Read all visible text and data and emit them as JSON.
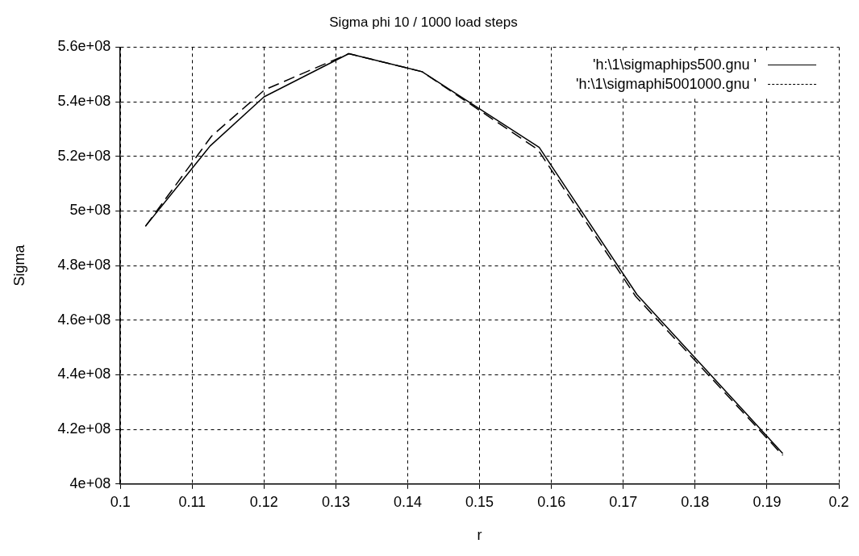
{
  "chart_data": {
    "type": "line",
    "title": "Sigma phi 10 / 1000 load steps",
    "xlabel": "r",
    "ylabel": "Sigma",
    "xlim": [
      0.1,
      0.2
    ],
    "xticks": [
      0.1,
      0.11,
      0.12,
      0.13,
      0.14,
      0.15,
      0.16,
      0.17,
      0.18,
      0.19,
      0.2
    ],
    "ylim": [
      400000000,
      560000000
    ],
    "yticks": [
      {
        "value": 400000000,
        "label": "4e+08"
      },
      {
        "value": 420000000,
        "label": "4.2e+08"
      },
      {
        "value": 440000000,
        "label": "4.4e+08"
      },
      {
        "value": 460000000,
        "label": "4.6e+08"
      },
      {
        "value": 480000000,
        "label": "4.8e+08"
      },
      {
        "value": 500000000,
        "label": "5e+08"
      },
      {
        "value": 520000000,
        "label": "5.2e+08"
      },
      {
        "value": 540000000,
        "label": "5.4e+08"
      },
      {
        "value": 560000000,
        "label": "5.6e+08"
      }
    ],
    "grid": true,
    "legend": "top right",
    "marker": "none",
    "series": [
      {
        "name": "'h:\\1\\sigmaphips500.gnu '",
        "color": "#000000",
        "line_style": "solid",
        "x": [
          0.1035,
          0.1125,
          0.12,
          0.1318,
          0.142,
          0.1583,
          0.1719,
          0.1922
        ],
        "values": [
          494400000,
          523800000,
          541800000,
          557600000,
          551000000,
          523300000,
          469400000,
          411200000
        ]
      },
      {
        "name": "'h:\\1\\sigmaphi5001000.gnu '",
        "color": "#000000",
        "line_style": "dashed",
        "x": [
          0.1035,
          0.1127,
          0.1201,
          0.1318,
          0.142,
          0.1581,
          0.1717,
          0.1922
        ],
        "values": [
          494400000,
          527400000,
          544400000,
          557600000,
          551000000,
          522500000,
          468800000,
          410500000
        ]
      }
    ]
  }
}
